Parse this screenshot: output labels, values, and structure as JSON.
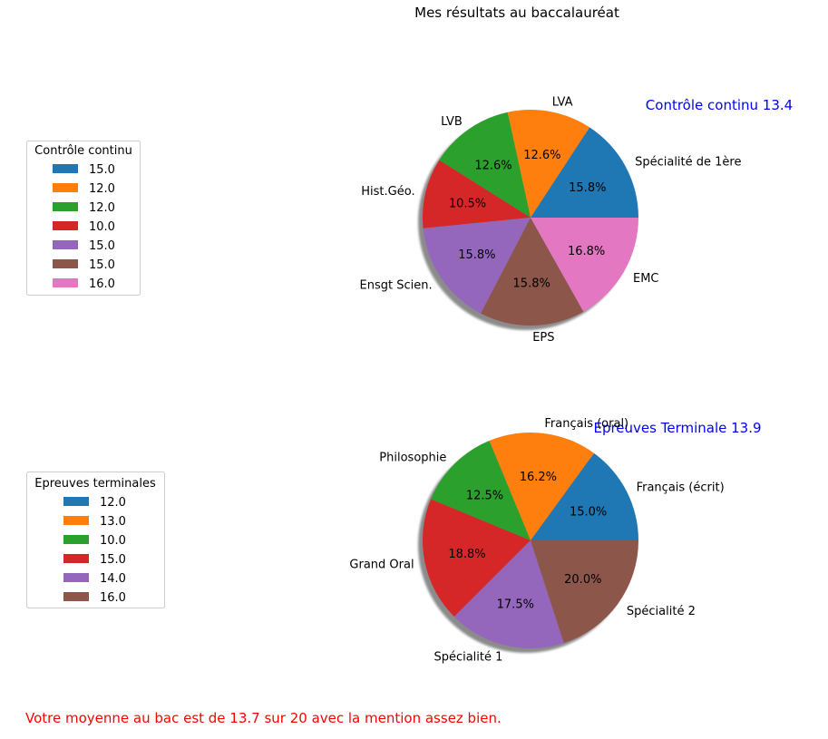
{
  "title": "Mes résultats au baccalauréat",
  "footer": "Votre moyenne au bac est de 13.7 sur 20 avec la mention assez bien.",
  "colors": {
    "palette": [
      "#1f77b4",
      "#ff7f0e",
      "#2ca02c",
      "#d62728",
      "#9467bd",
      "#8c564b",
      "#e377c2"
    ],
    "annotation": "#0000ff",
    "footer": "#ff0000"
  },
  "chart_data": [
    {
      "type": "pie",
      "title": "Contrôle continu 13.4",
      "legend_title": "Contrôle continu",
      "legend_placement": "left",
      "labels": [
        "Spécialité de 1ère",
        "LVA",
        "LVB",
        "Hist.Géo.",
        "Ensgt Scien.",
        "EPS",
        "EMC"
      ],
      "values": [
        15.0,
        12.0,
        12.0,
        10.0,
        15.0,
        15.0,
        16.0
      ],
      "legend_entries": [
        "15.0",
        "12.0",
        "12.0",
        "10.0",
        "15.0",
        "15.0",
        "16.0"
      ],
      "pct_labels": [
        "15.8%",
        "12.6%",
        "12.6%",
        "10.5%",
        "15.8%",
        "15.8%",
        "16.8%"
      ],
      "shadow": true
    },
    {
      "type": "pie",
      "title": "Epreuves Terminale 13.9",
      "legend_title": "Epreuves terminales",
      "legend_placement": "left",
      "labels": [
        "Français (écrit)",
        "Français (oral)",
        "Philosophie",
        "Grand Oral",
        "Spécialité 1",
        "Spécialité 2"
      ],
      "values": [
        12.0,
        13.0,
        10.0,
        15.0,
        14.0,
        16.0
      ],
      "legend_entries": [
        "12.0",
        "13.0",
        "10.0",
        "15.0",
        "14.0",
        "16.0"
      ],
      "pct_labels": [
        "15.0%",
        "16.2%",
        "12.5%",
        "18.8%",
        "17.5%",
        "20.0%"
      ],
      "shadow": true
    }
  ]
}
